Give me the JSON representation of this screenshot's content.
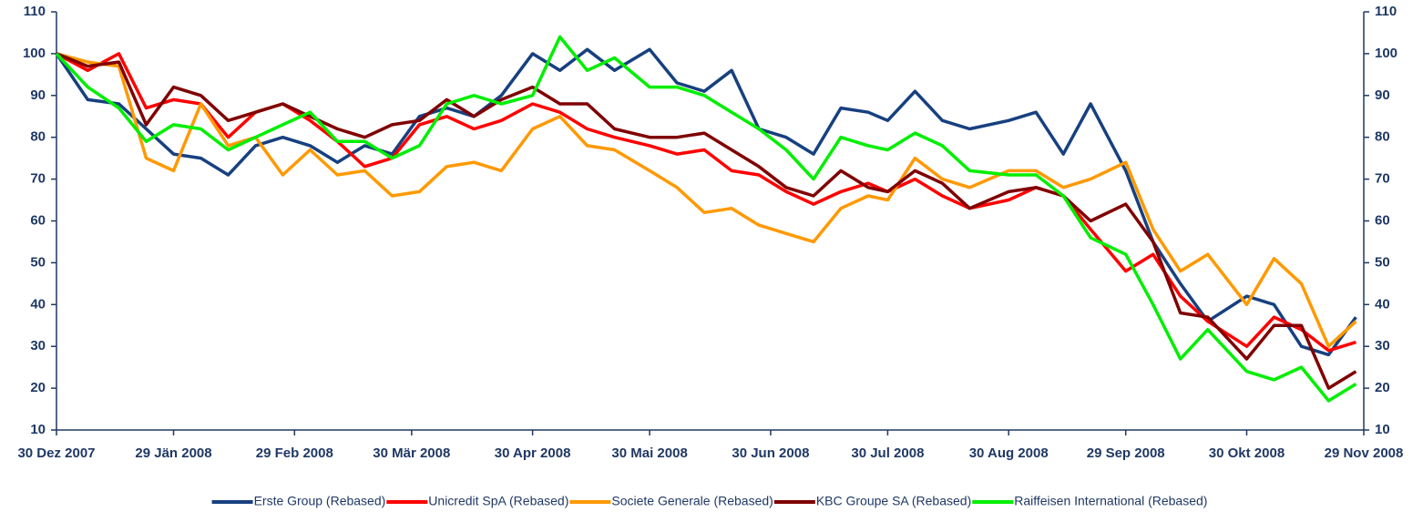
{
  "chart_data": {
    "type": "line",
    "x": [
      "2007-12-30",
      "2008-01-07",
      "2008-01-15",
      "2008-01-22",
      "2008-01-29",
      "2008-02-05",
      "2008-02-12",
      "2008-02-19",
      "2008-02-26",
      "2008-03-04",
      "2008-03-11",
      "2008-03-18",
      "2008-03-25",
      "2008-04-01",
      "2008-04-08",
      "2008-04-15",
      "2008-04-22",
      "2008-04-30",
      "2008-05-07",
      "2008-05-14",
      "2008-05-21",
      "2008-05-30",
      "2008-06-06",
      "2008-06-13",
      "2008-06-20",
      "2008-06-27",
      "2008-07-04",
      "2008-07-11",
      "2008-07-18",
      "2008-07-25",
      "2008-07-30",
      "2008-08-06",
      "2008-08-13",
      "2008-08-20",
      "2008-08-30",
      "2008-09-06",
      "2008-09-13",
      "2008-09-20",
      "2008-09-29",
      "2008-10-06",
      "2008-10-13",
      "2008-10-20",
      "2008-10-30",
      "2008-11-06",
      "2008-11-13",
      "2008-11-20",
      "2008-11-27"
    ],
    "series": [
      {
        "name": "Erste Group (Rebased)",
        "color": "#17407f",
        "values": [
          100,
          89,
          88,
          82,
          76,
          75,
          71,
          78,
          80,
          78,
          74,
          78,
          76,
          85,
          87,
          85,
          90,
          100,
          96,
          101,
          96,
          101,
          93,
          91,
          96,
          82,
          80,
          76,
          87,
          86,
          84,
          91,
          84,
          82,
          84,
          86,
          76,
          88,
          72,
          55,
          45,
          36,
          42,
          40,
          30,
          28,
          37
        ]
      },
      {
        "name": "Unicredit SpA (Rebased)",
        "color": "#ff0000",
        "values": [
          100,
          96,
          100,
          87,
          89,
          88,
          80,
          86,
          88,
          84,
          79,
          73,
          75,
          83,
          85,
          82,
          84,
          88,
          86,
          82,
          80,
          78,
          76,
          77,
          72,
          71,
          67,
          64,
          67,
          69,
          67,
          70,
          66,
          63,
          65,
          68,
          66,
          58,
          48,
          52,
          42,
          36,
          30,
          37,
          34,
          29,
          31
        ]
      },
      {
        "name": "Societe Generale (Rebased)",
        "color": "#ff9900",
        "values": [
          100,
          98,
          97,
          75,
          72,
          88,
          78,
          80,
          71,
          77,
          71,
          72,
          66,
          67,
          73,
          74,
          72,
          82,
          85,
          78,
          77,
          72,
          68,
          62,
          63,
          59,
          57,
          55,
          63,
          66,
          65,
          75,
          70,
          68,
          72,
          72,
          68,
          70,
          74,
          58,
          48,
          52,
          40,
          51,
          45,
          30,
          36
        ]
      },
      {
        "name": "KBC Groupe SA (Rebased)",
        "color": "#800000",
        "values": [
          100,
          97,
          98,
          83,
          92,
          90,
          84,
          86,
          88,
          85,
          82,
          80,
          83,
          84,
          89,
          85,
          89,
          92,
          88,
          88,
          82,
          80,
          80,
          81,
          77,
          73,
          68,
          66,
          72,
          68,
          67,
          72,
          69,
          63,
          67,
          68,
          66,
          60,
          64,
          55,
          38,
          37,
          27,
          35,
          35,
          20,
          24
        ]
      },
      {
        "name": "Raiffeisen International (Rebased)",
        "color": "#00ee00",
        "values": [
          100,
          92,
          87,
          79,
          83,
          82,
          77,
          80,
          83,
          86,
          79,
          79,
          75,
          78,
          88,
          90,
          88,
          90,
          104,
          96,
          99,
          92,
          92,
          90,
          86,
          82,
          77,
          70,
          80,
          78,
          77,
          81,
          78,
          72,
          71,
          71,
          66,
          56,
          52,
          40,
          27,
          34,
          24,
          22,
          25,
          17,
          21
        ]
      }
    ],
    "xlim": [
      "2007-12-30",
      "2008-11-29"
    ],
    "xticks": [
      {
        "value": "2007-12-30",
        "label": "30 Dez 2007"
      },
      {
        "value": "2008-01-29",
        "label": "29 Jän 2008"
      },
      {
        "value": "2008-02-29",
        "label": "29 Feb 2008"
      },
      {
        "value": "2008-03-30",
        "label": "30 Mär 2008"
      },
      {
        "value": "2008-04-30",
        "label": "30 Apr 2008"
      },
      {
        "value": "2008-05-30",
        "label": "30 Mai 2008"
      },
      {
        "value": "2008-06-30",
        "label": "30 Jun 2008"
      },
      {
        "value": "2008-07-30",
        "label": "30 Jul 2008"
      },
      {
        "value": "2008-08-30",
        "label": "30 Aug 2008"
      },
      {
        "value": "2008-09-29",
        "label": "29 Sep 2008"
      },
      {
        "value": "2008-10-30",
        "label": "30 Okt 2008"
      },
      {
        "value": "2008-11-29",
        "label": "29 Nov 2008"
      }
    ],
    "ylim": [
      10,
      110
    ],
    "yticks": [
      10,
      20,
      30,
      40,
      50,
      60,
      70,
      80,
      90,
      100,
      110
    ],
    "y2lim": [
      10,
      110
    ],
    "y2ticks": [
      10,
      20,
      30,
      40,
      50,
      60,
      70,
      80,
      90,
      100,
      110
    ],
    "grid": false,
    "legend": "bottom"
  }
}
